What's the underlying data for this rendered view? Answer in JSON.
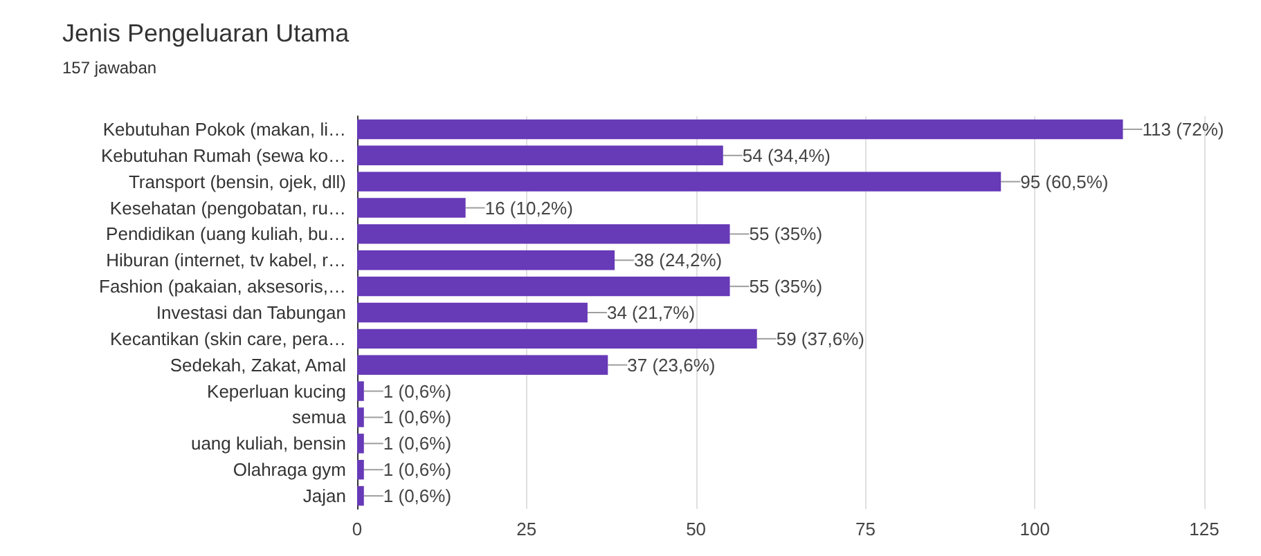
{
  "chart_data": {
    "type": "bar",
    "orientation": "horizontal",
    "title": "Jenis Pengeluaran Utama",
    "subtitle": "157 jawaban",
    "categories": [
      "Kebutuhan Pokok (makan, li…",
      "Kebutuhan Rumah (sewa ko…",
      "Transport (bensin, ojek, dll)",
      "Kesehatan (pengobatan, ru…",
      "Pendidikan (uang kuliah, bu…",
      "Hiburan (internet, tv kabel, r…",
      "Fashion (pakaian, aksesoris,…",
      "Investasi dan Tabungan",
      "Kecantikan (skin care, pera…",
      "Sedekah, Zakat, Amal",
      "Keperluan kucing",
      "semua",
      "uang kuliah, bensin",
      "Olahraga gym",
      "Jajan"
    ],
    "values": [
      113,
      54,
      95,
      16,
      55,
      38,
      55,
      34,
      59,
      37,
      1,
      1,
      1,
      1,
      1
    ],
    "value_labels": [
      "113 (72%)",
      "54 (34,4%)",
      "95 (60,5%)",
      "16 (10,2%)",
      "55 (35%)",
      "38 (24,2%)",
      "55 (35%)",
      "34 (21,7%)",
      "59 (37,6%)",
      "37 (23,6%)",
      "1 (0,6%)",
      "1 (0,6%)",
      "1 (0,6%)",
      "1 (0,6%)",
      "1 (0,6%)"
    ],
    "color": "#673ab7",
    "xlim": [
      0,
      125
    ],
    "xticks": [
      0,
      25,
      50,
      75,
      100,
      125
    ],
    "grid": "x"
  }
}
